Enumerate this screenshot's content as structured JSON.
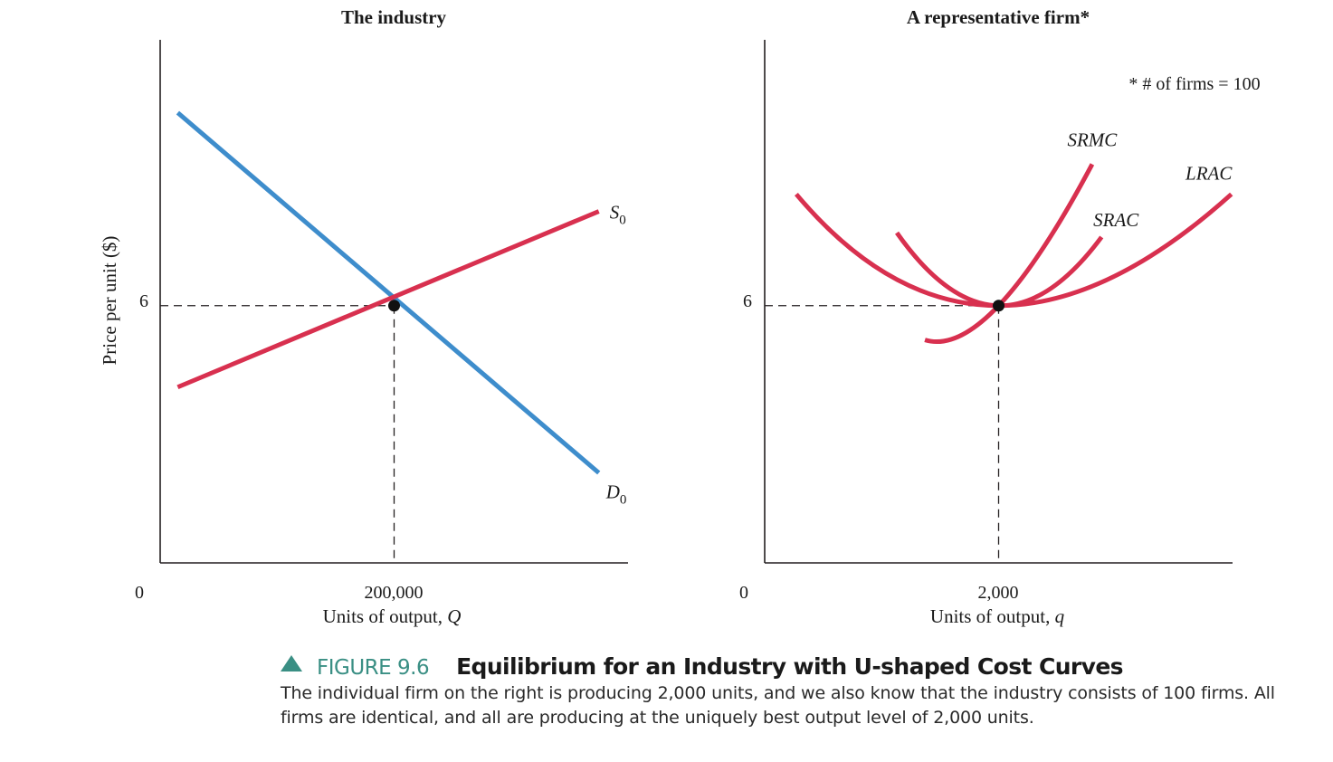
{
  "colors": {
    "demand": "#3e8dcc",
    "supply": "#d8304f",
    "cost_curves": "#d8304f",
    "caption_accent": "#3a8f84"
  },
  "chart_data": [
    {
      "type": "line",
      "title": "The industry",
      "xlabel": "Units of output, Q",
      "ylabel": "Price per unit ($)",
      "x_ticks": [
        {
          "value": 0,
          "label": "0"
        },
        {
          "value": 200000,
          "label": "200,000"
        }
      ],
      "y_ticks": [
        {
          "value": 6,
          "label": "6"
        }
      ],
      "xlim": [
        0,
        400000
      ],
      "ylim": [
        0,
        12.2
      ],
      "grid": false,
      "series": [
        {
          "name": "D0",
          "label_main": "D",
          "label_sub": "0",
          "color": "#3e8dcc",
          "x": [
            15000,
            375000
          ],
          "y": [
            10.5,
            2.1
          ]
        },
        {
          "name": "S0",
          "label_main": "S",
          "label_sub": "0",
          "color": "#d8304f",
          "x": [
            15000,
            375000
          ],
          "y": [
            4.1,
            8.2
          ]
        }
      ],
      "equilibrium": {
        "x": 200000,
        "y": 6
      }
    },
    {
      "type": "line",
      "title": "A representative firm*",
      "note": "* # of firms = 100",
      "xlabel": "Units of output, q",
      "ylabel": "",
      "x_ticks": [
        {
          "value": 0,
          "label": "0"
        },
        {
          "value": 2000,
          "label": "2,000"
        }
      ],
      "y_ticks": [
        {
          "value": 6,
          "label": "6"
        }
      ],
      "xlim": [
        0,
        4000
      ],
      "ylim": [
        0,
        12.2
      ],
      "grid": false,
      "series": [
        {
          "name": "SRMC",
          "color": "#d8304f",
          "x": [
            1370,
            2000,
            2800
          ],
          "y": [
            5.2,
            6.0,
            9.3
          ]
        },
        {
          "name": "SRAC",
          "color": "#d8304f",
          "x": [
            1130,
            2000,
            2880
          ],
          "y": [
            7.7,
            6.0,
            7.6
          ]
        },
        {
          "name": "LRAC",
          "color": "#d8304f",
          "x": [
            270,
            2000,
            3990
          ],
          "y": [
            8.6,
            6.0,
            8.6
          ]
        }
      ],
      "equilibrium": {
        "x": 2000,
        "y": 6
      }
    }
  ],
  "caption": {
    "figure_label": "FIGURE 9.6",
    "title": "Equilibrium for an Industry with U-shaped Cost Curves",
    "body": "The individual firm on the right is producing 2,000 units, and we also know that the industry consists of 100 firms. All firms are identical, and all are producing at the uniquely best output level of 2,000 units."
  }
}
